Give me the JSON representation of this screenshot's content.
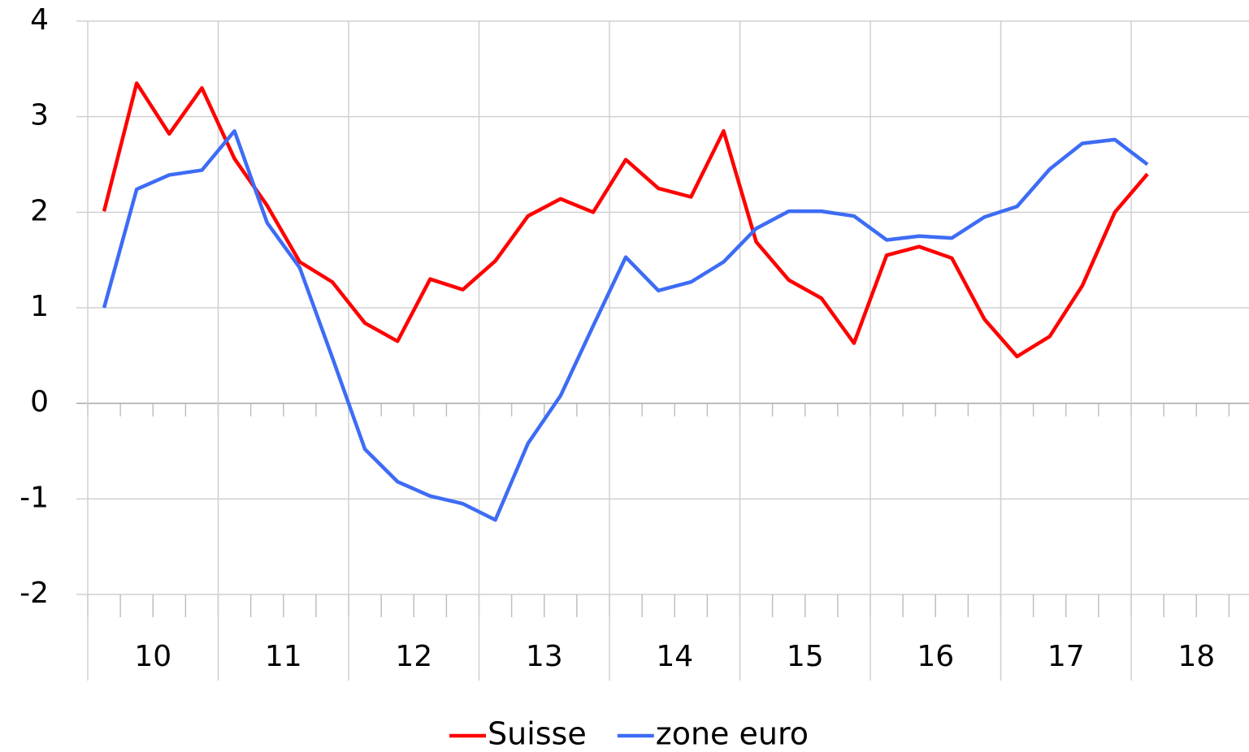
{
  "chart_data": {
    "type": "line",
    "categories": [
      "10",
      null,
      null,
      null,
      "11",
      null,
      null,
      null,
      "12",
      null,
      null,
      null,
      "13",
      null,
      null,
      null,
      "14",
      null,
      null,
      null,
      "15",
      null,
      null,
      null,
      "16",
      null,
      null,
      null,
      "17",
      null,
      null,
      null,
      "18"
    ],
    "series": [
      {
        "name": "Suisse",
        "color": "#ff0000",
        "values": [
          2.01,
          3.35,
          2.82,
          3.3,
          2.56,
          2.07,
          1.48,
          1.27,
          0.84,
          0.65,
          1.3,
          1.19,
          1.49,
          1.96,
          2.14,
          2.0,
          2.55,
          2.25,
          2.16,
          2.85,
          1.69,
          1.29,
          1.1,
          0.63,
          1.55,
          1.64,
          1.52,
          0.88,
          0.49,
          0.7,
          1.23,
          2.0,
          2.4
        ]
      },
      {
        "name": "zone euro",
        "color": "#3d6cf5",
        "values": [
          1.0,
          2.24,
          2.39,
          2.44,
          2.85,
          1.89,
          1.42,
          0.48,
          -0.48,
          -0.82,
          -0.97,
          -1.05,
          -1.22,
          -0.42,
          0.08,
          0.81,
          1.53,
          1.18,
          1.27,
          1.48,
          1.83,
          2.01,
          2.01,
          1.96,
          1.71,
          1.75,
          1.73,
          1.95,
          2.06,
          2.45,
          2.72,
          2.76,
          2.5
        ]
      }
    ],
    "ylim": [
      -2,
      4
    ],
    "yticks": [
      -2,
      -1,
      0,
      1,
      2,
      3,
      4
    ],
    "grid": true,
    "legend": "bottom"
  }
}
